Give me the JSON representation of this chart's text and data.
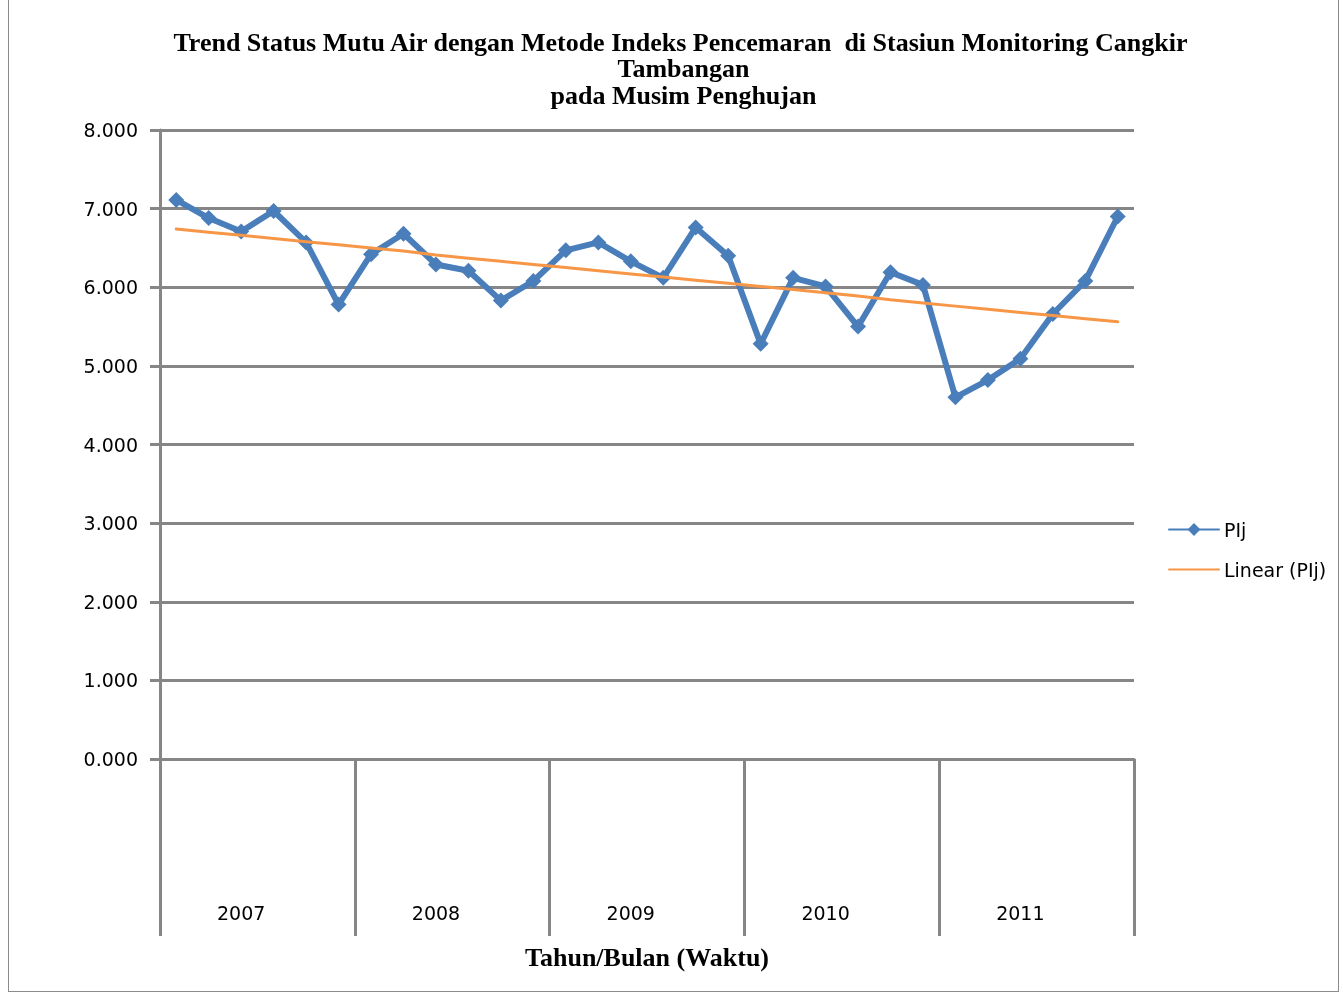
{
  "chart_data": {
    "type": "line",
    "title": "Trend Status Mutu Air dengan Metode Indeks Pencemaran  di Stasiun Monitoring Cangkir Tambangan\npada Musim Penghujan",
    "xlabel": "Tahun/Bulan (Waktu)",
    "categories": [
      null,
      null,
      "2007",
      null,
      null,
      null,
      null,
      null,
      "2008",
      null,
      null,
      null,
      null,
      null,
      "2009",
      null,
      null,
      null,
      null,
      null,
      "2010",
      null,
      null,
      null,
      null,
      null,
      "2011",
      null,
      null,
      null
    ],
    "series": [
      {
        "name": "PIj",
        "color": "#4a7ebb",
        "values": [
          7.11,
          6.88,
          6.71,
          6.97,
          6.57,
          5.78,
          6.42,
          6.68,
          6.29,
          6.21,
          5.83,
          6.08,
          6.47,
          6.57,
          6.33,
          6.12,
          6.76,
          6.4,
          5.28,
          6.12,
          6.01,
          5.5,
          6.19,
          6.03,
          4.6,
          4.82,
          5.09,
          5.66,
          6.08,
          6.9
        ]
      },
      {
        "name": "Linear (PIj)",
        "color": "#f79646",
        "marker": "none",
        "values": [
          6.74,
          6.7,
          6.66,
          6.62,
          6.58,
          6.54,
          6.5,
          6.46,
          6.41,
          6.37,
          6.33,
          6.29,
          6.25,
          6.21,
          6.17,
          6.13,
          6.09,
          6.05,
          6.01,
          5.97,
          5.93,
          5.89,
          5.84,
          5.8,
          5.76,
          5.72,
          5.68,
          5.64,
          5.6,
          5.56
        ]
      }
    ],
    "ylim": [
      0,
      8
    ],
    "yticks": [
      {
        "value": 0,
        "label": "0.000"
      },
      {
        "value": 1,
        "label": "1.000"
      },
      {
        "value": 2,
        "label": "2.000"
      },
      {
        "value": 3,
        "label": "3.000"
      },
      {
        "value": 4,
        "label": "4.000"
      },
      {
        "value": 5,
        "label": "5.000"
      },
      {
        "value": 6,
        "label": "6.000"
      },
      {
        "value": 7,
        "label": "7.000"
      },
      {
        "value": 8,
        "label": "8.000"
      }
    ],
    "grid": "y",
    "legend": "right",
    "marker": "diamond",
    "line_style": "solid"
  }
}
